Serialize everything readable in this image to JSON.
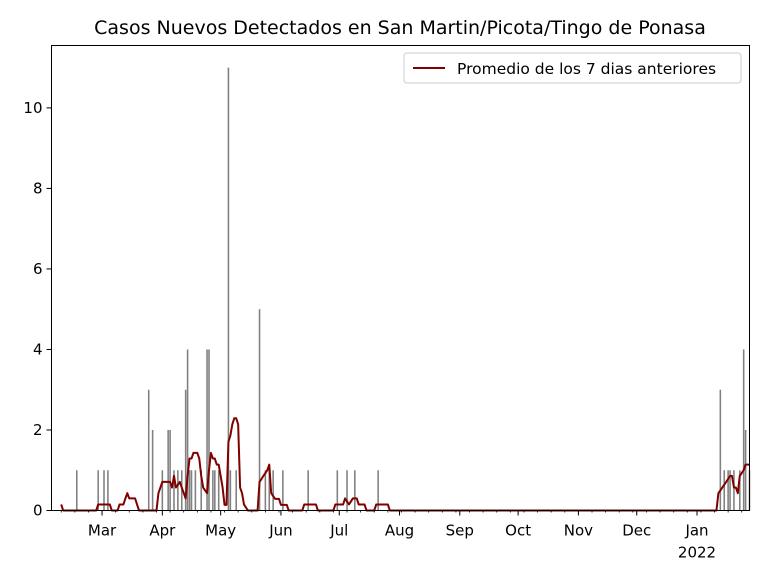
{
  "chart_data": {
    "type": "bar",
    "title": "Casos Nuevos Detectados en San Martin/Picota/Tingo de Ponasa",
    "xlabel": "",
    "ylabel": "",
    "x_range": [
      "2021-02-03",
      "2022-01-28"
    ],
    "ylim": [
      0,
      11.55
    ],
    "y_ticks": [
      0,
      2,
      4,
      6,
      8,
      10
    ],
    "x_ticks": [
      {
        "date": "2021-03-01",
        "label": "Mar",
        "sublabel": ""
      },
      {
        "date": "2021-04-01",
        "label": "Apr",
        "sublabel": ""
      },
      {
        "date": "2021-05-01",
        "label": "May",
        "sublabel": ""
      },
      {
        "date": "2021-06-01",
        "label": "Jun",
        "sublabel": ""
      },
      {
        "date": "2021-07-01",
        "label": "Jul",
        "sublabel": ""
      },
      {
        "date": "2021-08-01",
        "label": "Aug",
        "sublabel": ""
      },
      {
        "date": "2021-09-01",
        "label": "Sep",
        "sublabel": ""
      },
      {
        "date": "2021-10-01",
        "label": "Oct",
        "sublabel": ""
      },
      {
        "date": "2021-11-01",
        "label": "Nov",
        "sublabel": ""
      },
      {
        "date": "2021-12-01",
        "label": "Dec",
        "sublabel": ""
      },
      {
        "date": "2022-01-01",
        "label": "Jan",
        "sublabel": "2022"
      }
    ],
    "grid": false,
    "legend_position": "top-right",
    "bar_color": "#808080",
    "line_color": "#800000",
    "series": [
      {
        "name": "",
        "kind": "bar",
        "points": [
          [
            "2021-02-16",
            1
          ],
          [
            "2021-02-27",
            1
          ],
          [
            "2021-03-02",
            1
          ],
          [
            "2021-03-04",
            1
          ],
          [
            "2021-03-25",
            3
          ],
          [
            "2021-03-27",
            2
          ],
          [
            "2021-04-01",
            1
          ],
          [
            "2021-04-04",
            2
          ],
          [
            "2021-04-05",
            2
          ],
          [
            "2021-04-07",
            1
          ],
          [
            "2021-04-09",
            1
          ],
          [
            "2021-04-11",
            1
          ],
          [
            "2021-04-13",
            3
          ],
          [
            "2021-04-14",
            4
          ],
          [
            "2021-04-15",
            1
          ],
          [
            "2021-04-16",
            1
          ],
          [
            "2021-04-18",
            1
          ],
          [
            "2021-04-21",
            1
          ],
          [
            "2021-04-24",
            4
          ],
          [
            "2021-04-25",
            4
          ],
          [
            "2021-04-27",
            1
          ],
          [
            "2021-04-28",
            1
          ],
          [
            "2021-04-30",
            1
          ],
          [
            "2021-05-05",
            11
          ],
          [
            "2021-05-06",
            1
          ],
          [
            "2021-05-09",
            1
          ],
          [
            "2021-05-21",
            5
          ],
          [
            "2021-05-24",
            1
          ],
          [
            "2021-05-26",
            1
          ],
          [
            "2021-05-28",
            1
          ],
          [
            "2021-06-02",
            1
          ],
          [
            "2021-06-15",
            1
          ],
          [
            "2021-06-30",
            1
          ],
          [
            "2021-07-05",
            1
          ],
          [
            "2021-07-09",
            1
          ],
          [
            "2021-07-21",
            1
          ],
          [
            "2022-01-13",
            3
          ],
          [
            "2022-01-15",
            1
          ],
          [
            "2022-01-17",
            1
          ],
          [
            "2022-01-18",
            1
          ],
          [
            "2022-01-20",
            1
          ],
          [
            "2022-01-23",
            1
          ],
          [
            "2022-01-25",
            4
          ],
          [
            "2022-01-26",
            2
          ],
          [
            "2022-01-28",
            1
          ]
        ]
      },
      {
        "name": "Promedio de los 7 dias anteriores",
        "kind": "line",
        "points": [
          [
            "2021-02-08",
            0.15
          ],
          [
            "2021-02-09",
            0
          ],
          [
            "2021-02-26",
            0
          ],
          [
            "2021-02-27",
            0.15
          ],
          [
            "2021-03-05",
            0.15
          ],
          [
            "2021-03-06",
            0
          ],
          [
            "2021-03-09",
            0
          ],
          [
            "2021-03-10",
            0.15
          ],
          [
            "2021-03-12",
            0.15
          ],
          [
            "2021-03-13",
            0.3
          ],
          [
            "2021-03-14",
            0.43
          ],
          [
            "2021-03-15",
            0.3
          ],
          [
            "2021-03-18",
            0.3
          ],
          [
            "2021-03-19",
            0.15
          ],
          [
            "2021-03-20",
            0
          ],
          [
            "2021-03-29",
            0
          ],
          [
            "2021-03-30",
            0.43
          ],
          [
            "2021-04-01",
            0.71
          ],
          [
            "2021-04-05",
            0.71
          ],
          [
            "2021-04-06",
            0.57
          ],
          [
            "2021-04-07",
            0.86
          ],
          [
            "2021-04-08",
            0.57
          ],
          [
            "2021-04-10",
            0.71
          ],
          [
            "2021-04-11",
            0.57
          ],
          [
            "2021-04-13",
            0.3
          ],
          [
            "2021-04-14",
            0.86
          ],
          [
            "2021-04-15",
            1.29
          ],
          [
            "2021-04-16",
            1.29
          ],
          [
            "2021-04-17",
            1.43
          ],
          [
            "2021-04-19",
            1.43
          ],
          [
            "2021-04-20",
            1.29
          ],
          [
            "2021-04-21",
            0.86
          ],
          [
            "2021-04-22",
            0.57
          ],
          [
            "2021-04-24",
            0.43
          ],
          [
            "2021-04-25",
            1.0
          ],
          [
            "2021-04-26",
            1.43
          ],
          [
            "2021-04-27",
            1.29
          ],
          [
            "2021-04-28",
            1.29
          ],
          [
            "2021-04-29",
            1.14
          ],
          [
            "2021-04-30",
            1.14
          ],
          [
            "2021-05-01",
            0.86
          ],
          [
            "2021-05-02",
            0.57
          ],
          [
            "2021-05-03",
            0.14
          ],
          [
            "2021-05-04",
            0.14
          ],
          [
            "2021-05-05",
            1.71
          ],
          [
            "2021-05-06",
            1.86
          ],
          [
            "2021-05-07",
            2.14
          ],
          [
            "2021-05-08",
            2.29
          ],
          [
            "2021-05-09",
            2.29
          ],
          [
            "2021-05-10",
            2.14
          ],
          [
            "2021-05-11",
            0.57
          ],
          [
            "2021-05-12",
            0.43
          ],
          [
            "2021-05-13",
            0.15
          ],
          [
            "2021-05-15",
            0
          ],
          [
            "2021-05-20",
            0
          ],
          [
            "2021-05-21",
            0.71
          ],
          [
            "2021-05-23",
            0.86
          ],
          [
            "2021-05-25",
            1.0
          ],
          [
            "2021-05-26",
            1.14
          ],
          [
            "2021-05-27",
            0.43
          ],
          [
            "2021-05-29",
            0.29
          ],
          [
            "2021-05-31",
            0.29
          ],
          [
            "2021-06-01",
            0.14
          ],
          [
            "2021-06-04",
            0.14
          ],
          [
            "2021-06-05",
            0
          ],
          [
            "2021-06-12",
            0
          ],
          [
            "2021-06-13",
            0.15
          ],
          [
            "2021-06-19",
            0.15
          ],
          [
            "2021-06-20",
            0
          ],
          [
            "2021-06-28",
            0
          ],
          [
            "2021-06-29",
            0.15
          ],
          [
            "2021-07-03",
            0.15
          ],
          [
            "2021-07-04",
            0.3
          ],
          [
            "2021-07-06",
            0.15
          ],
          [
            "2021-07-08",
            0.3
          ],
          [
            "2021-07-10",
            0.3
          ],
          [
            "2021-07-11",
            0.15
          ],
          [
            "2021-07-14",
            0.15
          ],
          [
            "2021-07-15",
            0
          ],
          [
            "2021-07-19",
            0
          ],
          [
            "2021-07-20",
            0.15
          ],
          [
            "2021-07-26",
            0.15
          ],
          [
            "2021-07-27",
            0
          ],
          [
            "2022-01-11",
            0
          ],
          [
            "2022-01-12",
            0.43
          ],
          [
            "2022-01-14",
            0.57
          ],
          [
            "2022-01-16",
            0.71
          ],
          [
            "2022-01-18",
            0.86
          ],
          [
            "2022-01-19",
            0.86
          ],
          [
            "2022-01-20",
            0.57
          ],
          [
            "2022-01-21",
            0.57
          ],
          [
            "2022-01-22",
            0.43
          ],
          [
            "2022-01-23",
            0.86
          ],
          [
            "2022-01-25",
            1.0
          ],
          [
            "2022-01-26",
            1.14
          ],
          [
            "2022-01-28",
            1.14
          ]
        ]
      }
    ]
  }
}
